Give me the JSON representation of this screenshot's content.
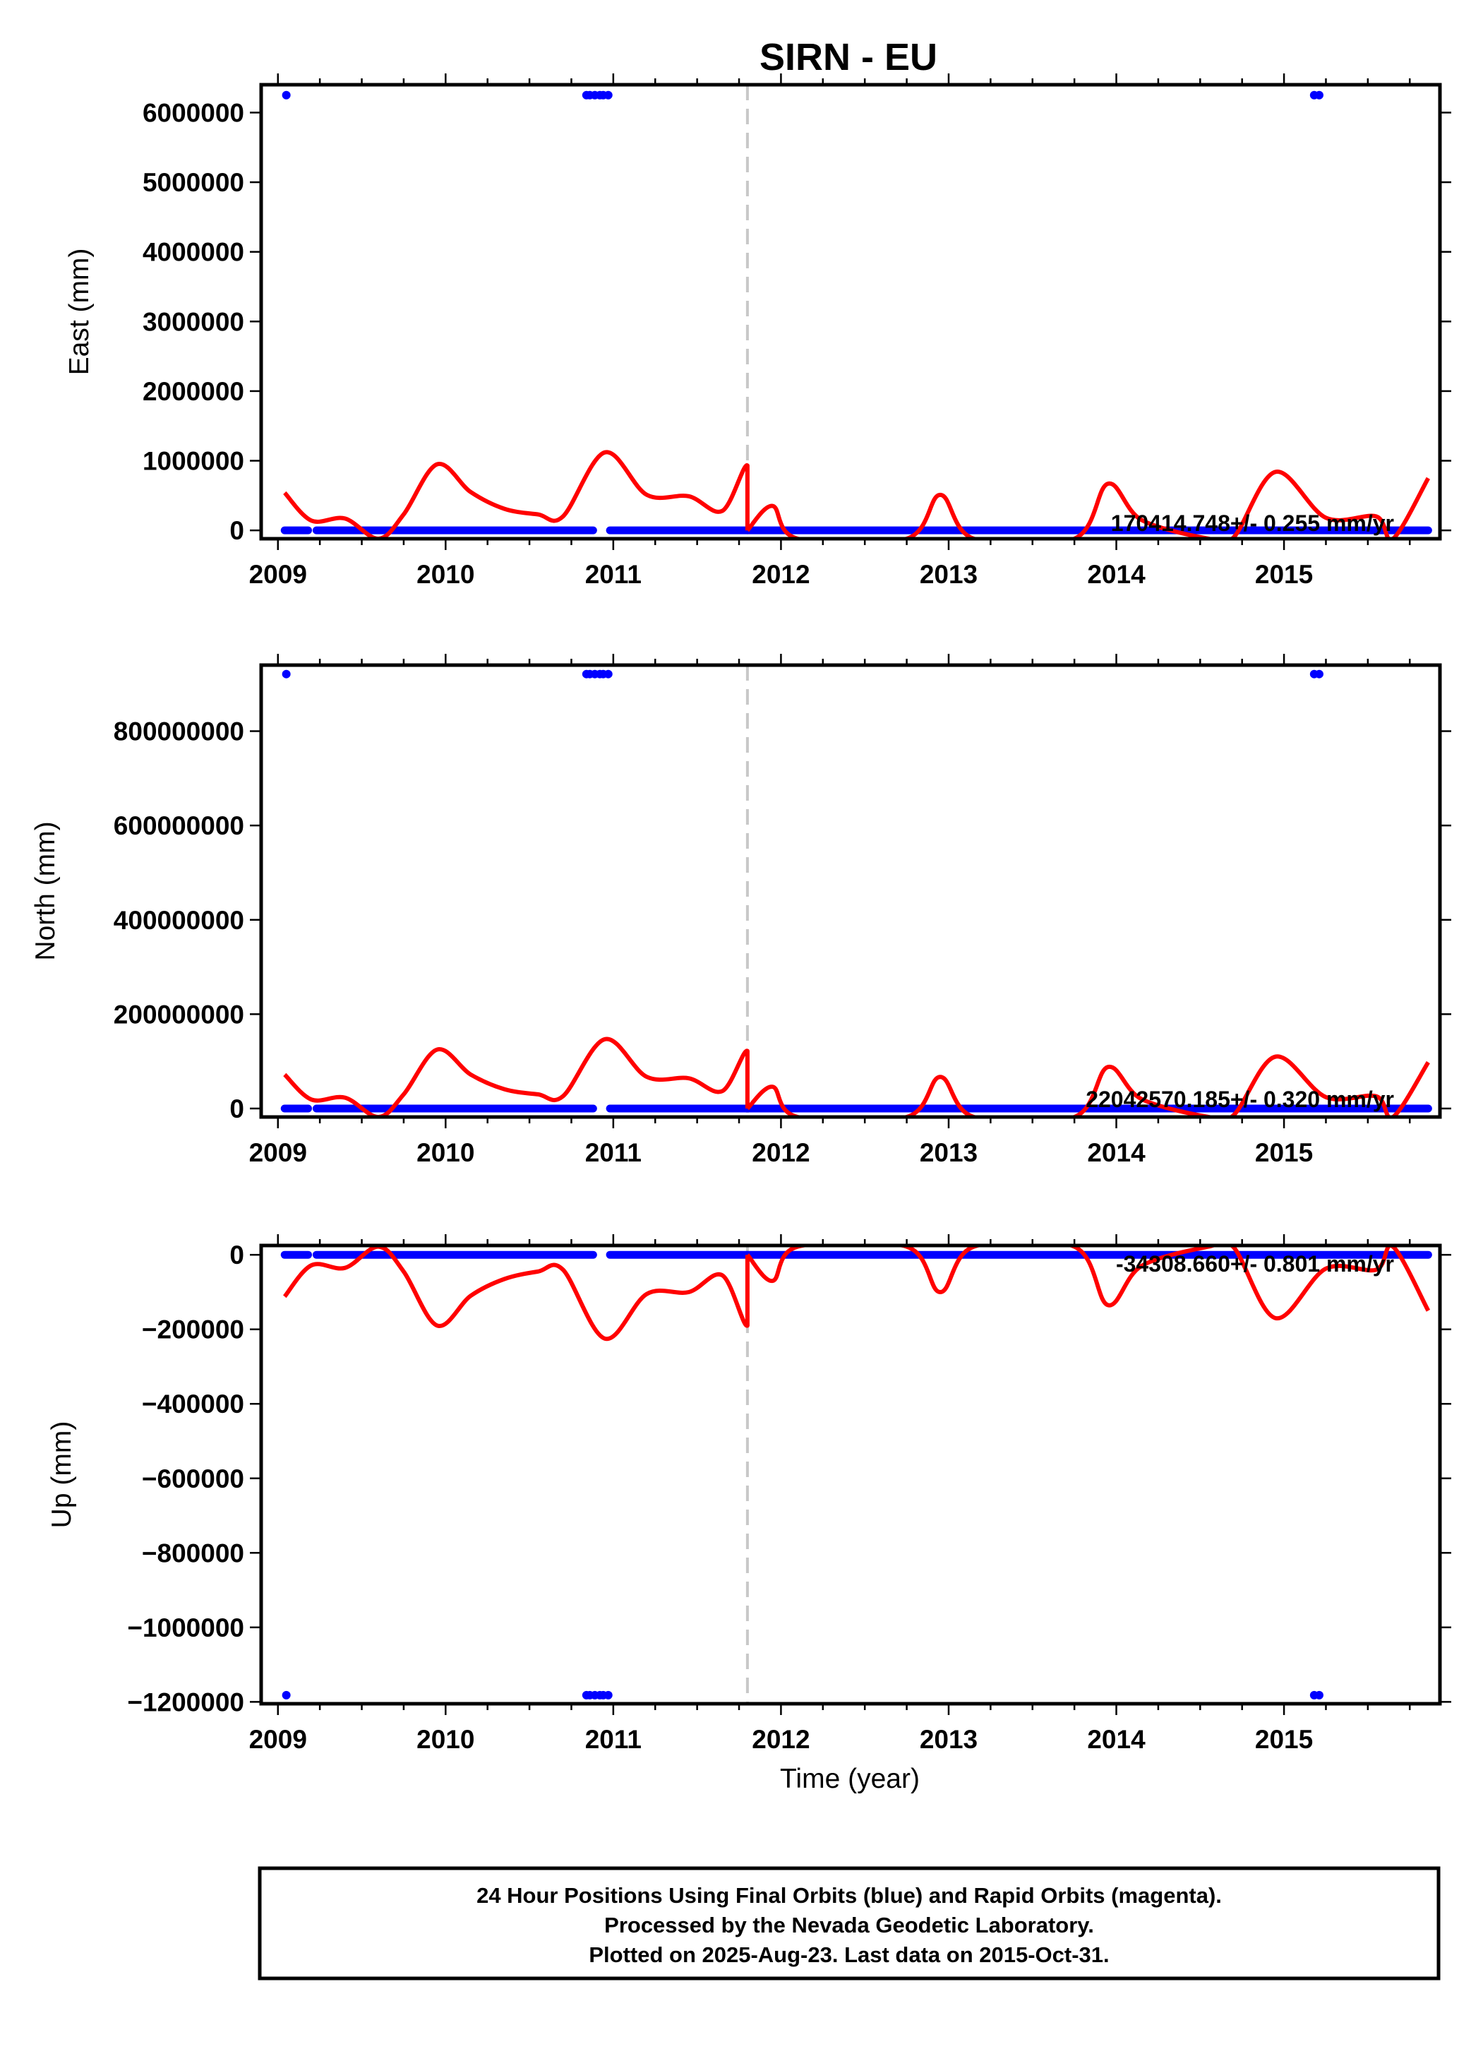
{
  "chart_data": [
    {
      "type": "scatter",
      "panel": "east",
      "title": "SIRN - EU",
      "ylabel": "East (mm)",
      "xlabel": "",
      "xlim": [
        2008.9,
        2015.93
      ],
      "ylim": [
        -120000,
        6400000
      ],
      "x_ticks": [
        2009,
        2010,
        2011,
        2012,
        2013,
        2014,
        2015
      ],
      "y_ticks": [
        0,
        1000000,
        2000000,
        3000000,
        4000000,
        5000000,
        6000000
      ],
      "y_tick_labels": [
        "0",
        "1000000",
        "2000000",
        "3000000",
        "4000000",
        "5000000",
        "6000000"
      ],
      "velocity_text": "170414.748+/- 0.255 mm/yr",
      "series": [
        {
          "kind": "points",
          "color": "#0000ff",
          "segments": [
            [
              2009.04,
              2009.18,
              0
            ],
            [
              2009.23,
              2010.88,
              0
            ],
            [
              2010.98,
              2011.8,
              0
            ],
            [
              2011.8,
              2015.86,
              0
            ]
          ],
          "outliers": [
            [
              2009.05,
              6250000
            ],
            [
              2010.84,
              6250000
            ],
            [
              2010.86,
              6250000
            ],
            [
              2010.89,
              6250000
            ],
            [
              2010.92,
              6250000
            ],
            [
              2010.94,
              6250000
            ],
            [
              2010.97,
              6250000
            ],
            [
              2015.18,
              6250000
            ],
            [
              2015.21,
              6250000
            ]
          ]
        },
        {
          "kind": "fit",
          "color": "#ff0000",
          "points": [
            [
              2009.04,
              540000
            ],
            [
              2009.2,
              140000
            ],
            [
              2009.4,
              170000
            ],
            [
              2009.6,
              -120000
            ],
            [
              2009.75,
              230000
            ],
            [
              2009.95,
              950000
            ],
            [
              2010.15,
              550000
            ],
            [
              2010.35,
              310000
            ],
            [
              2010.55,
              230000
            ],
            [
              2010.7,
              200000
            ],
            [
              2010.95,
              1120000
            ],
            [
              2011.2,
              510000
            ],
            [
              2011.45,
              490000
            ],
            [
              2011.65,
              280000
            ],
            [
              2011.8,
              930000
            ],
            [
              2011.8,
              0
            ],
            [
              2011.95,
              350000
            ],
            [
              2012.1,
              -120000
            ],
            [
              2012.75,
              -120000
            ],
            [
              2012.95,
              510000
            ],
            [
              2013.15,
              -120000
            ],
            [
              2013.75,
              -120000
            ],
            [
              2013.95,
              670000
            ],
            [
              2014.15,
              150000
            ],
            [
              2014.55,
              -120000
            ],
            [
              2014.7,
              -100000
            ],
            [
              2014.95,
              840000
            ],
            [
              2015.25,
              180000
            ],
            [
              2015.55,
              200000
            ],
            [
              2015.65,
              -120000
            ],
            [
              2015.86,
              750000
            ]
          ]
        }
      ]
    },
    {
      "type": "scatter",
      "panel": "north",
      "ylabel": "North (mm)",
      "xlabel": "",
      "xlim": [
        2008.9,
        2015.93
      ],
      "ylim": [
        -18000000,
        940000000
      ],
      "x_ticks": [
        2009,
        2010,
        2011,
        2012,
        2013,
        2014,
        2015
      ],
      "y_ticks": [
        0,
        200000000,
        400000000,
        600000000,
        800000000
      ],
      "y_tick_labels": [
        "0",
        "200000000",
        "400000000",
        "600000000",
        "800000000"
      ],
      "velocity_text": "22042570.185+/- 0.320 mm/yr",
      "series": [
        {
          "kind": "points",
          "color": "#0000ff",
          "segments": [
            [
              2009.04,
              2009.18,
              0
            ],
            [
              2009.23,
              2010.88,
              0
            ],
            [
              2010.98,
              2011.8,
              0
            ],
            [
              2011.8,
              2015.86,
              0
            ]
          ],
          "outliers": [
            [
              2009.05,
              921000000
            ],
            [
              2010.84,
              921000000
            ],
            [
              2010.86,
              921000000
            ],
            [
              2010.89,
              921000000
            ],
            [
              2010.92,
              921000000
            ],
            [
              2010.94,
              921000000
            ],
            [
              2010.97,
              921000000
            ],
            [
              2015.18,
              921000000
            ],
            [
              2015.21,
              921000000
            ]
          ]
        },
        {
          "kind": "fit",
          "color": "#ff0000",
          "points": [
            [
              2009.04,
              72000000
            ],
            [
              2009.2,
              19000000
            ],
            [
              2009.4,
              23000000
            ],
            [
              2009.6,
              -18000000
            ],
            [
              2009.75,
              30000000
            ],
            [
              2009.95,
              125000000
            ],
            [
              2010.15,
              72000000
            ],
            [
              2010.35,
              41000000
            ],
            [
              2010.55,
              30000000
            ],
            [
              2010.7,
              26000000
            ],
            [
              2010.95,
              147000000
            ],
            [
              2011.2,
              67000000
            ],
            [
              2011.45,
              64000000
            ],
            [
              2011.65,
              37000000
            ],
            [
              2011.8,
              122000000
            ],
            [
              2011.8,
              0
            ],
            [
              2011.95,
              46000000
            ],
            [
              2012.1,
              -18000000
            ],
            [
              2012.75,
              -18000000
            ],
            [
              2012.95,
              67000000
            ],
            [
              2013.15,
              -18000000
            ],
            [
              2013.75,
              -18000000
            ],
            [
              2013.95,
              88000000
            ],
            [
              2014.15,
              20000000
            ],
            [
              2014.55,
              -18000000
            ],
            [
              2014.7,
              -14000000
            ],
            [
              2014.95,
              110000000
            ],
            [
              2015.25,
              24000000
            ],
            [
              2015.55,
              26000000
            ],
            [
              2015.65,
              -18000000
            ],
            [
              2015.86,
              98000000
            ]
          ]
        }
      ]
    },
    {
      "type": "scatter",
      "panel": "up",
      "ylabel": "Up (mm)",
      "xlabel": "Time (year)",
      "xlim": [
        2008.9,
        2015.93
      ],
      "ylim": [
        -1205000,
        25000
      ],
      "x_ticks": [
        2009,
        2010,
        2011,
        2012,
        2013,
        2014,
        2015
      ],
      "y_ticks": [
        0,
        -200000,
        -400000,
        -600000,
        -800000,
        -1000000,
        -1200000
      ],
      "y_tick_labels": [
        "0",
        "−200000",
        "−400000",
        "−600000",
        "−800000",
        "−1000000",
        "−1200000"
      ],
      "velocity_text": "-34308.660+/- 0.801 mm/yr",
      "series": [
        {
          "kind": "points",
          "color": "#0000ff",
          "segments": [
            [
              2009.04,
              2009.18,
              0
            ],
            [
              2009.23,
              2010.88,
              0
            ],
            [
              2010.98,
              2011.8,
              0
            ],
            [
              2011.8,
              2015.86,
              0
            ]
          ],
          "outliers": [
            [
              2009.05,
              -1182000
            ],
            [
              2010.84,
              -1182000
            ],
            [
              2010.86,
              -1182000
            ],
            [
              2010.89,
              -1182000
            ],
            [
              2010.92,
              -1182000
            ],
            [
              2010.94,
              -1182000
            ],
            [
              2010.97,
              -1182000
            ],
            [
              2015.18,
              -1182000
            ],
            [
              2015.21,
              -1182000
            ]
          ]
        },
        {
          "kind": "fit",
          "color": "#ff0000",
          "points": [
            [
              2009.04,
              -112000
            ],
            [
              2009.2,
              -28000
            ],
            [
              2009.4,
              -35000
            ],
            [
              2009.6,
              22000
            ],
            [
              2009.75,
              -45000
            ],
            [
              2009.95,
              -190000
            ],
            [
              2010.15,
              -110000
            ],
            [
              2010.35,
              -65000
            ],
            [
              2010.55,
              -45000
            ],
            [
              2010.7,
              -40000
            ],
            [
              2010.95,
              -225000
            ],
            [
              2011.2,
              -105000
            ],
            [
              2011.45,
              -100000
            ],
            [
              2011.65,
              -55000
            ],
            [
              2011.8,
              -190000
            ],
            [
              2011.8,
              0
            ],
            [
              2011.95,
              -70000
            ],
            [
              2012.1,
              22000
            ],
            [
              2012.75,
              22000
            ],
            [
              2012.95,
              -100000
            ],
            [
              2013.15,
              22000
            ],
            [
              2013.75,
              22000
            ],
            [
              2013.95,
              -135000
            ],
            [
              2014.15,
              -30000
            ],
            [
              2014.55,
              22000
            ],
            [
              2014.7,
              20000
            ],
            [
              2014.95,
              -170000
            ],
            [
              2015.25,
              -37000
            ],
            [
              2015.55,
              -40000
            ],
            [
              2015.65,
              22000
            ],
            [
              2015.86,
              -150000
            ]
          ]
        }
      ]
    }
  ],
  "equipment_change_year": 2011.8,
  "footer": {
    "line1": "24 Hour Positions Using Final Orbits (blue) and Rapid Orbits (magenta).",
    "line2": "Processed by the Nevada Geodetic Laboratory.",
    "line3": "Plotted on 2025-Aug-23. Last data on 2015-Oct-31."
  }
}
